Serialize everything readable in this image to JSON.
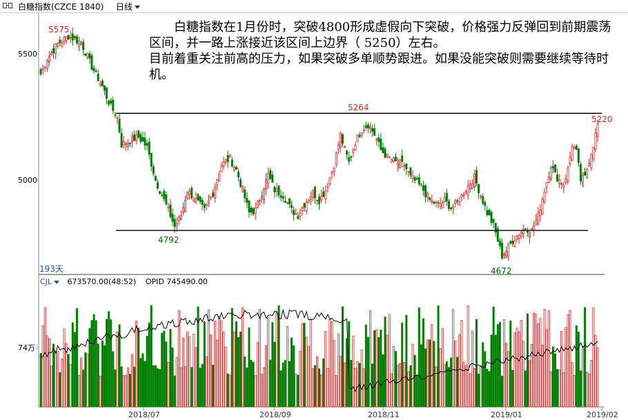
{
  "header": {
    "name": "白糖指数(CZCE 1840)",
    "period": "日线"
  },
  "annotation": {
    "line1": "白糖指数在1月份时，突破4800形成虚假向下突破，价格强力反弹回到前期震荡区间，并一路上涨接近该区间上边界（ 5250）左右。",
    "line2": "目前着重关注前高的压力，如果突破多单顺势跟进。如果没能突破则需要继续等待时机。"
  },
  "price_axis": {
    "labels": [
      "5500",
      "5000"
    ]
  },
  "day_count": "193天",
  "volume_header": {
    "label": "CJL",
    "values": "673570.00(48:52)",
    "opid": "OPID 745490.00"
  },
  "volume_axis": {
    "label": "74万"
  },
  "date_axis": {
    "labels": [
      "2018/07",
      "2018/09",
      "2018/11",
      "2019/01",
      "2019/02"
    ]
  },
  "price_labels": {
    "high_5575": "5575",
    "high_5264": "5264",
    "low_4792": "4792",
    "low_4672": "4672",
    "last_5220": "5220"
  },
  "lines": {
    "resistance": 5264,
    "support": 4800
  },
  "colors": {
    "up": "#e02020",
    "down": "#008000",
    "text_red": "#e02020",
    "text_green": "#006600",
    "axis_blue": "#2050c0",
    "line": "#000000"
  },
  "chart_data": {
    "type": "candlestick",
    "ylim": [
      4650,
      5650
    ],
    "anchors": [
      [
        0,
        5420
      ],
      [
        3,
        5480
      ],
      [
        8,
        5540
      ],
      [
        13,
        5570
      ],
      [
        19,
        5545
      ],
      [
        24,
        5450
      ],
      [
        29,
        5370
      ],
      [
        33,
        5290
      ],
      [
        36,
        5250
      ],
      [
        38,
        5140
      ],
      [
        43,
        5160
      ],
      [
        46,
        5170
      ],
      [
        50,
        5130
      ],
      [
        54,
        5000
      ],
      [
        58,
        4920
      ],
      [
        61,
        4860
      ],
      [
        63,
        4815
      ],
      [
        66,
        4860
      ],
      [
        69,
        4960
      ],
      [
        73,
        4920
      ],
      [
        77,
        4880
      ],
      [
        81,
        4950
      ],
      [
        85,
        5060
      ],
      [
        89,
        5085
      ],
      [
        92,
        5040
      ],
      [
        95,
        4960
      ],
      [
        98,
        4870
      ],
      [
        101,
        4880
      ],
      [
        104,
        4950
      ],
      [
        107,
        5020
      ],
      [
        110,
        4960
      ],
      [
        114,
        4940
      ],
      [
        118,
        4880
      ],
      [
        121,
        4860
      ],
      [
        124,
        4905
      ],
      [
        128,
        4950
      ],
      [
        131,
        4920
      ],
      [
        134,
        4960
      ],
      [
        138,
        5060
      ],
      [
        141,
        5180
      ],
      [
        143,
        5120
      ],
      [
        145,
        5070
      ],
      [
        148,
        5150
      ],
      [
        151,
        5200
      ],
      [
        154,
        5220
      ],
      [
        157,
        5180
      ],
      [
        160,
        5120
      ],
      [
        163,
        5090
      ],
      [
        167,
        5070
      ],
      [
        171,
        5060
      ],
      [
        174,
        5010
      ],
      [
        177,
        4990
      ],
      [
        180,
        4960
      ],
      [
        183,
        4920
      ],
      [
        187,
        4900
      ],
      [
        190,
        4920
      ],
      [
        193,
        4890
      ],
      [
        196,
        4910
      ],
      [
        199,
        4950
      ],
      [
        202,
        4990
      ],
      [
        204,
        5010
      ],
      [
        207,
        4940
      ],
      [
        210,
        4870
      ],
      [
        213,
        4820
      ],
      [
        215,
        4760
      ],
      [
        217,
        4700
      ],
      [
        219,
        4720
      ],
      [
        222,
        4760
      ],
      [
        225,
        4790
      ],
      [
        228,
        4810
      ],
      [
        231,
        4800
      ],
      [
        234,
        4860
      ],
      [
        237,
        4960
      ],
      [
        240,
        5060
      ],
      [
        242,
        5020
      ],
      [
        244,
        5000
      ],
      [
        246,
        4985
      ],
      [
        248,
        5040
      ],
      [
        250,
        5140
      ],
      [
        252,
        5110
      ],
      [
        254,
        5000
      ],
      [
        256,
        5010
      ],
      [
        258,
        5080
      ],
      [
        260,
        5140
      ],
      [
        262,
        5220
      ]
    ],
    "volume_ylim": [
      0,
      1200000
    ],
    "oi_ylim": [
      0,
      1200000
    ]
  }
}
